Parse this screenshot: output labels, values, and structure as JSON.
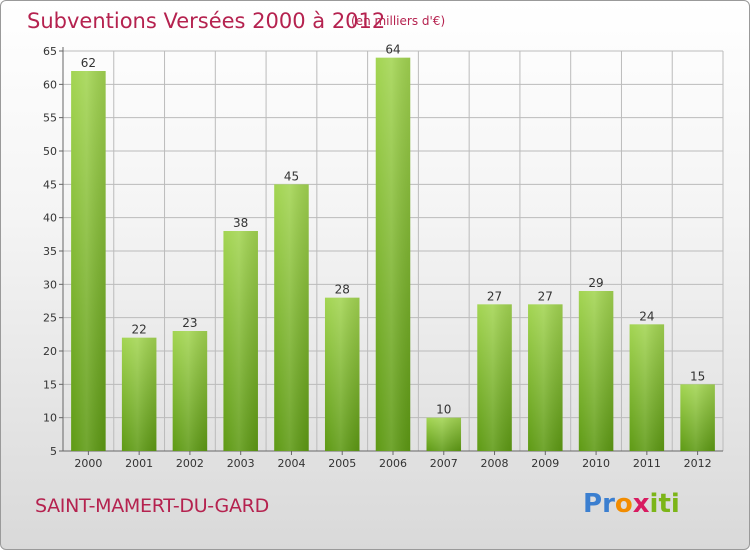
{
  "header": {
    "title": "Subventions Versées 2000 à 2012",
    "subtitle": "(en milliers d'€)"
  },
  "footer": {
    "commune": "SAINT-MAMERT-DU-GARD",
    "logo": {
      "text": "Proxiti",
      "letters": [
        "P",
        "r",
        "o",
        "x",
        "i",
        "t",
        "i"
      ],
      "colors": [
        "#3b7fd0",
        "#3b7fd0",
        "#f28c00",
        "#d81b60",
        "#7cb518",
        "#7cb518",
        "#7cb518"
      ]
    }
  },
  "colors": {
    "bar_light": "#9fd24a",
    "bar_dark": "#5e9a14",
    "grid": "#bbbbbb",
    "text_accent": "#b5224f"
  },
  "chart_data": {
    "type": "bar",
    "title": "Subventions Versées 2000 à 2012",
    "subtitle": "(en milliers d'€)",
    "xlabel": "",
    "ylabel": "",
    "categories": [
      "2000",
      "2001",
      "2002",
      "2003",
      "2004",
      "2005",
      "2006",
      "2007",
      "2008",
      "2009",
      "2010",
      "2011",
      "2012"
    ],
    "values": [
      62,
      22,
      23,
      38,
      45,
      28,
      64,
      10,
      27,
      27,
      29,
      24,
      15
    ],
    "ylim": [
      5,
      65
    ],
    "yticks": [
      5,
      10,
      15,
      20,
      25,
      30,
      35,
      40,
      45,
      50,
      55,
      60,
      65
    ],
    "grid": true,
    "data_labels": true
  }
}
